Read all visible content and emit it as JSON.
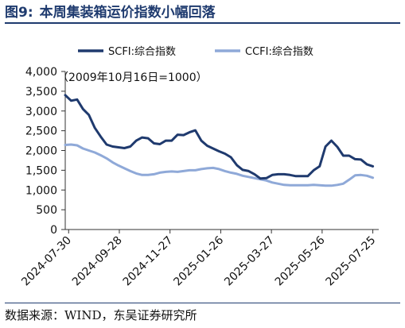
{
  "figure": {
    "number": "图9:",
    "title": "本周集装箱运价指数小幅回落",
    "source": "数据来源：WIND，东吴证券研究所"
  },
  "chart_data": {
    "type": "line",
    "annotation": "（2009年10月16日=1000）",
    "ylim": [
      0,
      4000
    ],
    "yticks": [
      "4,000",
      "3,500",
      "3,000",
      "2,500",
      "2,000",
      "1,500",
      "1,000",
      "500",
      "0"
    ],
    "ytick_values": [
      4000,
      3500,
      3000,
      2500,
      2000,
      1500,
      1000,
      500,
      0
    ],
    "xlim": [
      "2024-07-26",
      "2025-08-01"
    ],
    "xticks": [
      "2024-07-30",
      "2024-09-28",
      "2024-11-27",
      "2025-01-26",
      "2025-03-27",
      "2025-05-26",
      "2025-07-25"
    ],
    "legend_position": "top",
    "colors": {
      "scfi": "#1f3a6e",
      "ccfi": "#8fa9d8",
      "axis": "#333333"
    },
    "series": [
      {
        "name": "SCFI:综合指数",
        "x": [
          "2024-07-26",
          "2024-08-02",
          "2024-08-09",
          "2024-08-16",
          "2024-08-23",
          "2024-08-30",
          "2024-09-06",
          "2024-09-13",
          "2024-09-20",
          "2024-09-27",
          "2024-10-04",
          "2024-10-11",
          "2024-10-18",
          "2024-10-25",
          "2024-11-01",
          "2024-11-08",
          "2024-11-15",
          "2024-11-22",
          "2024-11-29",
          "2024-12-06",
          "2024-12-13",
          "2024-12-20",
          "2024-12-27",
          "2025-01-03",
          "2025-01-10",
          "2025-01-17",
          "2025-01-24",
          "2025-01-31",
          "2025-02-07",
          "2025-02-14",
          "2025-02-21",
          "2025-02-28",
          "2025-03-07",
          "2025-03-14",
          "2025-03-21",
          "2025-03-28",
          "2025-04-04",
          "2025-04-11",
          "2025-04-18",
          "2025-04-25",
          "2025-05-02",
          "2025-05-09",
          "2025-05-16",
          "2025-05-23",
          "2025-05-30",
          "2025-06-06",
          "2025-06-13",
          "2025-06-20",
          "2025-06-27",
          "2025-07-04",
          "2025-07-11",
          "2025-07-18",
          "2025-07-25"
        ],
        "values": [
          3400,
          3260,
          3290,
          3050,
          2900,
          2570,
          2350,
          2150,
          2100,
          2080,
          2060,
          2100,
          2250,
          2330,
          2310,
          2180,
          2160,
          2250,
          2250,
          2400,
          2390,
          2460,
          2510,
          2250,
          2120,
          2050,
          1980,
          1920,
          1830,
          1630,
          1510,
          1480,
          1400,
          1290,
          1300,
          1380,
          1400,
          1400,
          1380,
          1350,
          1350,
          1350,
          1500,
          1600,
          2100,
          2250,
          2090,
          1870,
          1870,
          1780,
          1770,
          1650,
          1600
        ]
      },
      {
        "name": "CCFI:综合指数",
        "x": [
          "2024-07-26",
          "2024-08-02",
          "2024-08-09",
          "2024-08-16",
          "2024-08-23",
          "2024-08-30",
          "2024-09-06",
          "2024-09-13",
          "2024-09-20",
          "2024-09-27",
          "2024-10-04",
          "2024-10-11",
          "2024-10-18",
          "2024-10-25",
          "2024-11-01",
          "2024-11-08",
          "2024-11-15",
          "2024-11-22",
          "2024-11-29",
          "2024-12-06",
          "2024-12-13",
          "2024-12-20",
          "2024-12-27",
          "2025-01-03",
          "2025-01-10",
          "2025-01-17",
          "2025-01-24",
          "2025-01-31",
          "2025-02-07",
          "2025-02-14",
          "2025-02-21",
          "2025-02-28",
          "2025-03-07",
          "2025-03-14",
          "2025-03-21",
          "2025-03-28",
          "2025-04-04",
          "2025-04-11",
          "2025-04-18",
          "2025-04-25",
          "2025-05-02",
          "2025-05-09",
          "2025-05-16",
          "2025-05-23",
          "2025-05-30",
          "2025-06-06",
          "2025-06-13",
          "2025-06-20",
          "2025-06-27",
          "2025-07-04",
          "2025-07-11",
          "2025-07-18",
          "2025-07-25"
        ],
        "values": [
          2140,
          2150,
          2130,
          2050,
          2000,
          1950,
          1880,
          1800,
          1700,
          1620,
          1550,
          1480,
          1420,
          1380,
          1380,
          1400,
          1440,
          1460,
          1470,
          1460,
          1480,
          1500,
          1500,
          1530,
          1550,
          1560,
          1530,
          1480,
          1440,
          1410,
          1360,
          1330,
          1300,
          1270,
          1240,
          1190,
          1160,
          1130,
          1120,
          1120,
          1120,
          1120,
          1130,
          1120,
          1110,
          1110,
          1130,
          1160,
          1260,
          1370,
          1380,
          1360,
          1310
        ]
      }
    ]
  }
}
